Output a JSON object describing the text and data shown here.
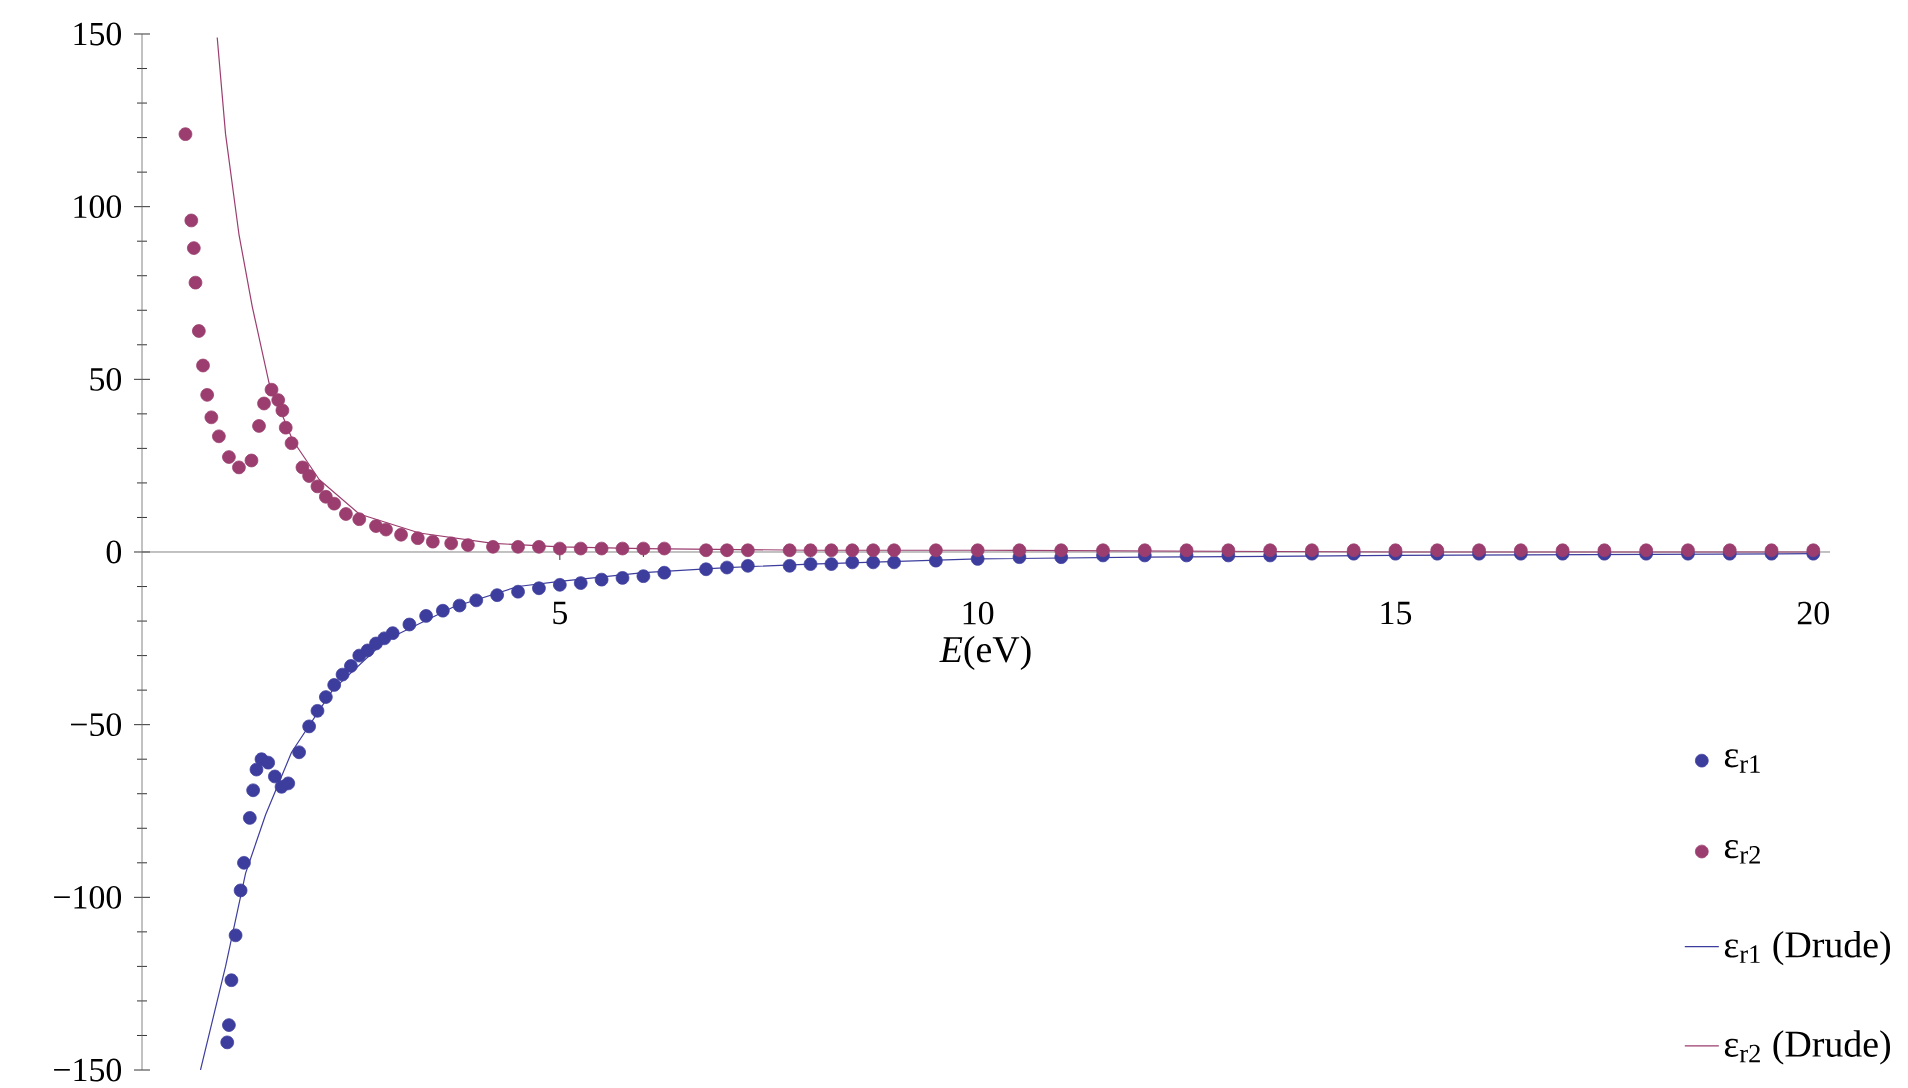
{
  "chart_data": {
    "type": "scatter",
    "xlabel": "*E*(eV)",
    "xlim": [
      0,
      20.2
    ],
    "ylim": [
      -150,
      150
    ],
    "xticks": [
      5,
      10,
      15,
      20
    ],
    "yticks": [
      {
        "value": -150,
        "label": "−150"
      },
      {
        "value": -100,
        "label": "−100"
      },
      {
        "value": -50,
        "label": "−50"
      },
      0,
      50,
      100,
      150
    ],
    "legend": "bottom right",
    "grid": false,
    "series": [
      {
        "name": "ε$_{r1}$",
        "type": "scatter",
        "marker": "circle",
        "color": "#3d3d9e",
        "x": [
          1.02,
          1.04,
          1.07,
          1.12,
          1.18,
          1.22,
          1.29,
          1.33,
          1.37,
          1.43,
          1.51,
          1.59,
          1.67,
          1.75,
          1.88,
          2.0,
          2.1,
          2.2,
          2.3,
          2.4,
          2.5,
          2.6,
          2.7,
          2.8,
          2.9,
          3.0,
          3.2,
          3.4,
          3.6,
          3.8,
          4.0,
          4.25,
          4.5,
          4.75,
          5.0,
          5.25,
          5.5,
          5.75,
          6.0,
          6.25,
          6.75,
          7.0,
          7.25,
          7.75,
          8.0,
          8.25,
          8.5,
          8.75,
          9.0,
          9.5,
          10.0,
          10.5,
          11.0,
          11.5,
          12.0,
          12.5,
          13.0,
          13.5,
          14.0,
          14.5,
          15.0,
          15.5,
          16.0,
          16.5,
          17.0,
          17.5,
          18.0,
          18.5,
          19.0,
          19.5,
          20.0
        ],
        "values": [
          -142,
          -137,
          -124,
          -111,
          -98,
          -90,
          -77,
          -69,
          -63,
          -60,
          -61,
          -65,
          -68,
          -67,
          -58,
          -50.5,
          -46,
          -42,
          -38.5,
          -35.5,
          -33,
          -30,
          -28.5,
          -26.5,
          -25,
          -23.5,
          -21,
          -18.5,
          -17,
          -15.5,
          -14,
          -12.5,
          -11.5,
          -10.5,
          -9.5,
          -9,
          -8,
          -7.5,
          -7,
          -6,
          -5,
          -4.5,
          -4,
          -4,
          -3.5,
          -3.5,
          -3,
          -3,
          -3,
          -2.5,
          -2,
          -1.5,
          -1.5,
          -1,
          -1,
          -1,
          -1,
          -1,
          -0.5,
          -0.5,
          -0.5,
          -0.5,
          -0.5,
          -0.5,
          -0.5,
          -0.5,
          -0.5,
          -0.5,
          -0.5,
          -0.5,
          -0.5
        ]
      },
      {
        "name": "ε$_{r2}$",
        "type": "scatter",
        "marker": "circle",
        "color": "#9b3d6e",
        "x": [
          0.52,
          0.59,
          0.62,
          0.64,
          0.68,
          0.73,
          0.78,
          0.83,
          0.92,
          1.04,
          1.16,
          1.31,
          1.4,
          1.46,
          1.55,
          1.63,
          1.68,
          1.72,
          1.79,
          1.92,
          2.0,
          2.1,
          2.2,
          2.3,
          2.44,
          2.6,
          2.8,
          2.92,
          3.1,
          3.3,
          3.48,
          3.7,
          3.9,
          4.2,
          4.5,
          4.75,
          5.0,
          5.25,
          5.5,
          5.75,
          6.0,
          6.25,
          6.75,
          7.0,
          7.25,
          7.75,
          8.0,
          8.25,
          8.5,
          8.75,
          9.0,
          9.5,
          10.0,
          10.5,
          11.0,
          11.5,
          12.0,
          12.5,
          13.0,
          13.5,
          14.0,
          14.5,
          15.0,
          15.5,
          16.0,
          16.5,
          17.0,
          17.5,
          18.0,
          18.5,
          19.0,
          19.5,
          20.0
        ],
        "values": [
          121,
          96,
          88,
          78,
          64,
          54,
          45.5,
          39,
          33.5,
          27.5,
          24.5,
          26.5,
          36.5,
          43,
          47,
          44,
          41,
          36,
          31.5,
          24.5,
          22,
          19,
          16,
          14,
          11,
          9.5,
          7.5,
          6.5,
          5,
          4,
          3,
          2.5,
          2,
          1.5,
          1.5,
          1.5,
          1,
          1,
          1,
          1,
          1,
          1,
          0.5,
          0.5,
          0.5,
          0.5,
          0.5,
          0.5,
          0.5,
          0.5,
          0.5,
          0.5,
          0.5,
          0.5,
          0.5,
          0.5,
          0.5,
          0.5,
          0.5,
          0.5,
          0.5,
          0.5,
          0.5,
          0.5,
          0.5,
          0.5,
          0.5,
          0.5,
          0.5,
          0.5,
          0.5,
          0.5,
          0.5
        ]
      },
      {
        "name": "ε$_{r1}$ (Drude)",
        "type": "line",
        "marker": "none",
        "color": "#3d3d9e",
        "x": [
          0.7,
          1.0,
          1.24,
          1.48,
          1.79,
          2.28,
          2.92,
          3.72,
          4.5,
          5.0,
          6.0,
          7.0,
          8.0,
          10.0,
          12.0,
          15.0,
          20.0
        ],
        "values": [
          -150,
          -120,
          -93,
          -76,
          -58,
          -40,
          -25.5,
          -16,
          -10,
          -8.5,
          -6,
          -4.5,
          -3.5,
          -2,
          -1.5,
          -1,
          -0.5
        ]
      },
      {
        "name": "ε$_{r2}$ (Drude)",
        "type": "line",
        "marker": "none",
        "color": "#9b3d6e",
        "x": [
          0.9,
          1.0,
          1.16,
          1.32,
          1.52,
          1.8,
          2.12,
          2.6,
          3.32,
          4.2,
          5.0,
          6.0,
          8.0,
          10.0,
          15.0,
          20.0
        ],
        "values": [
          149,
          121,
          92,
          71,
          49,
          32.5,
          21,
          11,
          5.5,
          2.5,
          1.5,
          1,
          0.5,
          0.5,
          0,
          0
        ]
      }
    ]
  }
}
